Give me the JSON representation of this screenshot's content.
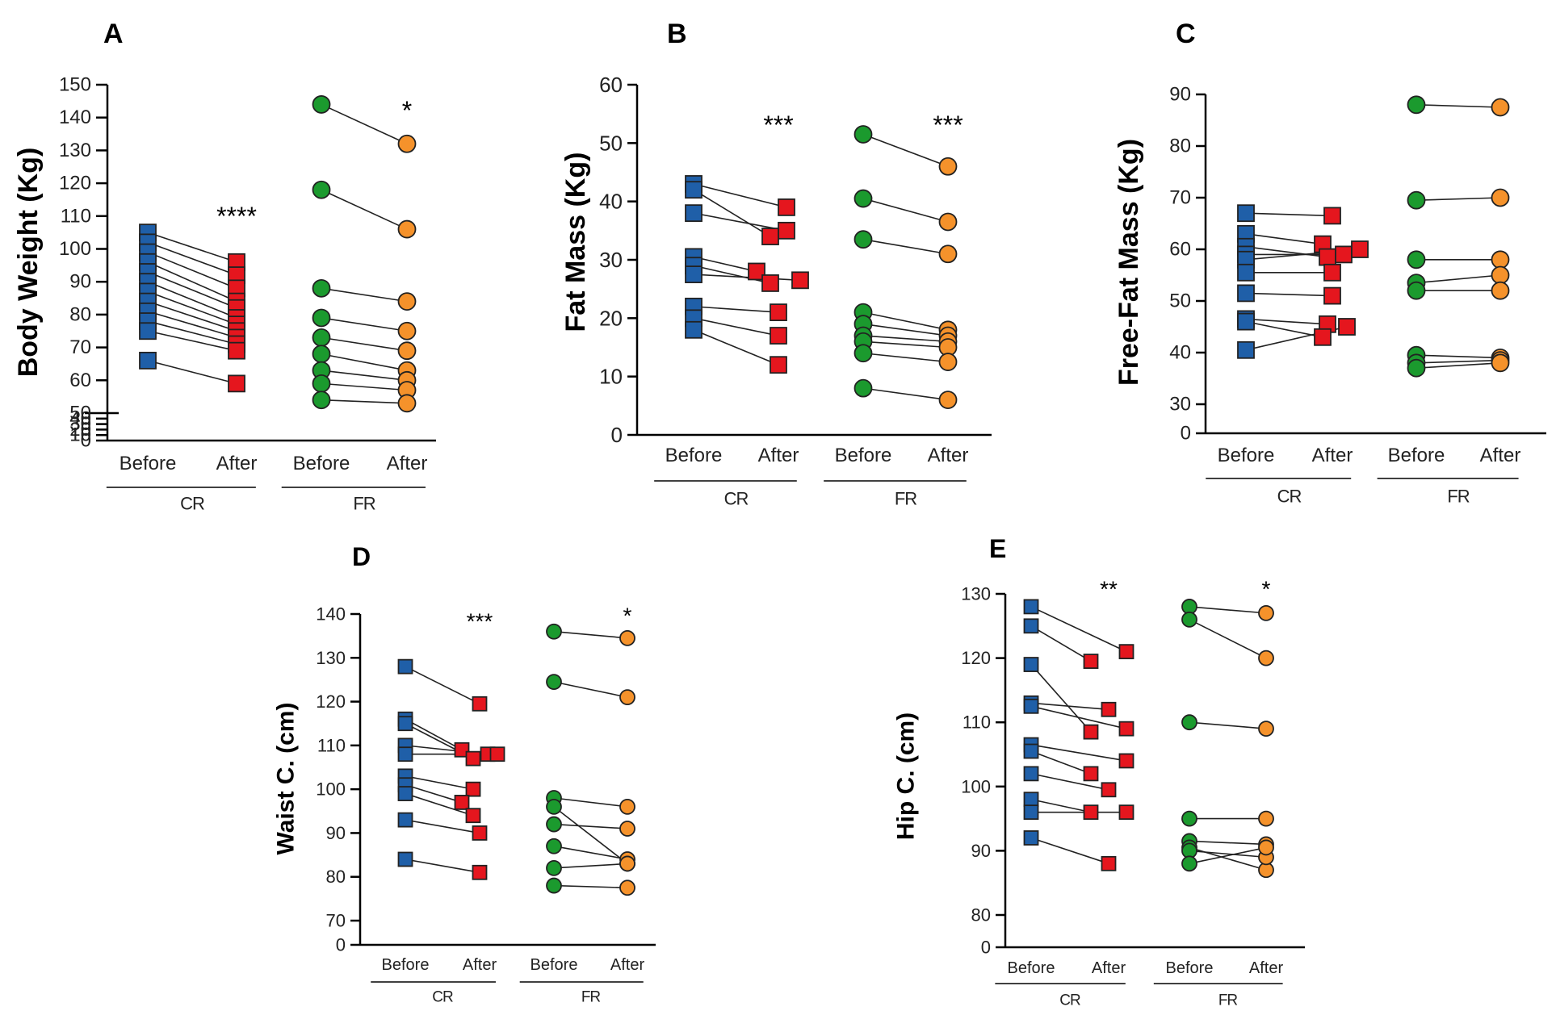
{
  "chart_data": [
    {
      "type": "scatter",
      "panel": "A",
      "ylabel": "Body Weight (Kg)",
      "axis_break": true,
      "ylim": [
        0,
        150
      ],
      "yticks": [
        0,
        10,
        20,
        30,
        40,
        50,
        60,
        70,
        80,
        90,
        100,
        110,
        120,
        130,
        140,
        150
      ],
      "categories": [
        "Before",
        "After",
        "Before",
        "After"
      ],
      "groups": [
        "CR",
        "FR"
      ],
      "significance": [
        {
          "group": "CR",
          "text": "****"
        },
        {
          "group": "FR",
          "text": "*"
        }
      ],
      "series": [
        {
          "name": "CR",
          "before": [
            105,
            102,
            99,
            96,
            93,
            90,
            87,
            84,
            81,
            78,
            75,
            66
          ],
          "after": [
            96,
            92,
            88,
            84,
            82,
            79,
            77,
            75,
            73,
            71,
            69,
            59
          ]
        },
        {
          "name": "FR",
          "before": [
            144,
            118,
            88,
            79,
            73,
            68,
            63,
            59,
            54
          ],
          "after": [
            132,
            106,
            84,
            75,
            69,
            63,
            60,
            57,
            53
          ]
        }
      ]
    },
    {
      "type": "scatter",
      "panel": "B",
      "ylabel": "Fat Mass (Kg)",
      "axis_break": false,
      "ylim": [
        0,
        60
      ],
      "yticks": [
        0,
        10,
        20,
        30,
        40,
        50,
        60
      ],
      "categories": [
        "Before",
        "After",
        "Before",
        "After"
      ],
      "groups": [
        "CR",
        "FR"
      ],
      "significance": [
        {
          "group": "CR",
          "text": "***"
        },
        {
          "group": "FR",
          "text": "***"
        }
      ],
      "series": [
        {
          "name": "CR",
          "before": [
            43,
            42,
            38,
            30.5,
            29,
            27.5,
            22,
            20,
            18
          ],
          "after": [
            39,
            34,
            35,
            28,
            26,
            26.5,
            21,
            17,
            12
          ]
        },
        {
          "name": "FR",
          "before": [
            51.5,
            40.5,
            33.5,
            21,
            19,
            17,
            16,
            14,
            8
          ],
          "after": [
            46,
            36.5,
            31,
            18,
            17,
            16,
            15,
            12.5,
            6
          ]
        }
      ]
    },
    {
      "type": "scatter",
      "panel": "C",
      "ylabel": "Free-Fat Mass (Kg)",
      "axis_break": true,
      "ylim": [
        0,
        90
      ],
      "yticks": [
        0,
        30,
        40,
        50,
        60,
        70,
        80,
        90
      ],
      "categories": [
        "Before",
        "After",
        "Before",
        "After"
      ],
      "groups": [
        "CR",
        "FR"
      ],
      "significance": [],
      "series": [
        {
          "name": "CR",
          "before": [
            67,
            63,
            60.5,
            59,
            58,
            55.5,
            51.5,
            46.5,
            46,
            40.5
          ],
          "after": [
            66.5,
            61,
            58.5,
            59,
            60,
            55.5,
            51,
            45.5,
            43,
            45
          ]
        },
        {
          "name": "FR",
          "before": [
            88,
            69.5,
            58,
            53.5,
            52,
            39.5,
            38,
            37
          ],
          "after": [
            87.5,
            70,
            58,
            55,
            52,
            39,
            38.5,
            38
          ]
        }
      ]
    },
    {
      "type": "scatter",
      "panel": "D",
      "ylabel": "Waist C. (cm)",
      "axis_break": true,
      "ylim": [
        0,
        140
      ],
      "yticks": [
        0,
        70,
        80,
        90,
        100,
        110,
        120,
        130,
        140
      ],
      "categories": [
        "Before",
        "After",
        "Before",
        "After"
      ],
      "groups": [
        "CR",
        "FR"
      ],
      "significance": [
        {
          "group": "CR",
          "text": "***"
        },
        {
          "group": "FR",
          "text": "*"
        }
      ],
      "series": [
        {
          "name": "CR",
          "before": [
            128,
            116,
            115,
            110,
            108,
            103,
            101,
            99,
            93,
            84
          ],
          "after": [
            119.5,
            109,
            107,
            108,
            108,
            100,
            97,
            94,
            90,
            81
          ]
        },
        {
          "name": "FR",
          "before": [
            136,
            124.5,
            98,
            96,
            92,
            87,
            82,
            78
          ],
          "after": [
            134.5,
            121,
            96,
            83,
            91,
            84,
            83,
            77.5
          ]
        }
      ]
    },
    {
      "type": "scatter",
      "panel": "E",
      "ylabel": "Hip C. (cm)",
      "axis_break": true,
      "ylim": [
        0,
        130
      ],
      "yticks": [
        0,
        80,
        90,
        100,
        110,
        120,
        130
      ],
      "categories": [
        "Before",
        "After",
        "Before",
        "After"
      ],
      "groups": [
        "CR",
        "FR"
      ],
      "significance": [
        {
          "group": "CR",
          "text": "**"
        },
        {
          "group": "FR",
          "text": "*"
        }
      ],
      "series": [
        {
          "name": "CR",
          "before": [
            128,
            125,
            119,
            113,
            112.5,
            106.5,
            105.5,
            102,
            98,
            96,
            92
          ],
          "after": [
            121,
            119.5,
            108.5,
            112,
            109,
            104,
            102,
            99.5,
            96,
            96,
            88
          ]
        },
        {
          "name": "FR",
          "before": [
            128,
            126,
            110,
            95,
            91.5,
            90.5,
            90,
            88
          ],
          "after": [
            127,
            120,
            109,
            95,
            91,
            87,
            89,
            90.5
          ]
        }
      ]
    }
  ],
  "colors": {
    "cr_before": "#1f5fa8",
    "cr_after": "#e5161e",
    "fr_before": "#1b9a2e",
    "fr_after": "#f5922b"
  }
}
